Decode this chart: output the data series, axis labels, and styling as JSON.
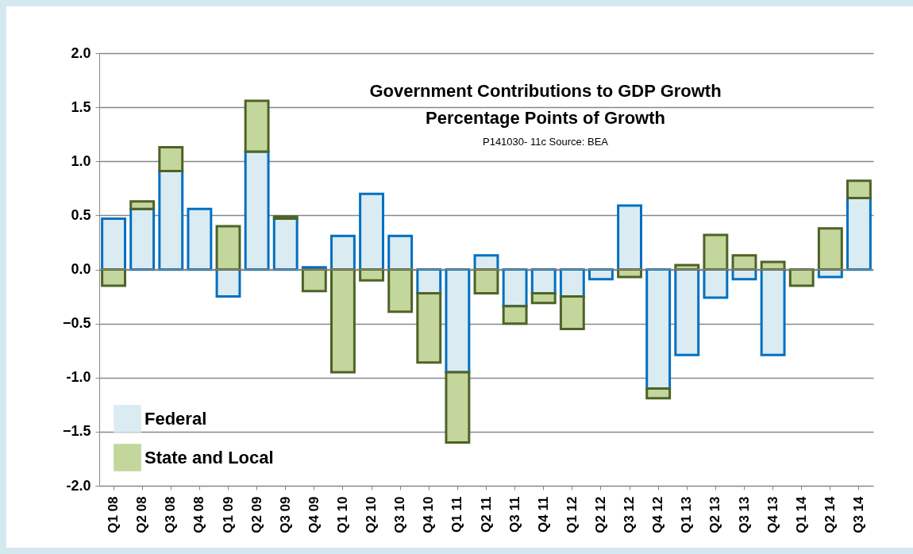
{
  "chart_data": {
    "type": "bar",
    "stacked": true,
    "title": "Government Contributions to GDP Growth",
    "subtitle": "Percentage Points of Growth",
    "annotations": [
      "P141030- 11c Source: BEA"
    ],
    "categories": [
      "Q1 08",
      "Q2 08",
      "Q3 08",
      "Q4 08",
      "Q1 09",
      "Q2 09",
      "Q3 09",
      "Q4 09",
      "Q1 10",
      "Q2 10",
      "Q3 10",
      "Q4 10",
      "Q1 11",
      "Q2 11",
      "Q3 11",
      "Q4 11",
      "Q1 12",
      "Q2 12",
      "Q3 12",
      "Q4 12",
      "Q1 13",
      "Q2 13",
      "Q3 13",
      "Q4 13",
      "Q1 14",
      "Q2 14",
      "Q3 14"
    ],
    "series": [
      {
        "name": "Federal",
        "color": "#daebf2",
        "values": [
          0.47,
          0.56,
          0.91,
          0.56,
          -0.25,
          1.09,
          0.47,
          0.02,
          0.31,
          0.7,
          0.31,
          -0.22,
          -0.95,
          0.13,
          -0.34,
          -0.22,
          -0.25,
          -0.09,
          0.59,
          -1.1,
          -0.79,
          -0.26,
          -0.09,
          -0.79,
          null,
          -0.07,
          0.66
        ]
      },
      {
        "name": "State and Local",
        "color": "#c3d69b",
        "values": [
          -0.15,
          0.07,
          0.22,
          null,
          0.4,
          0.47,
          0.02,
          -0.2,
          -0.95,
          -0.1,
          -0.39,
          -0.64,
          -0.65,
          -0.22,
          -0.16,
          -0.09,
          -0.3,
          null,
          -0.07,
          -0.09,
          0.04,
          0.32,
          0.13,
          0.07,
          -0.15,
          0.38,
          0.16
        ]
      }
    ],
    "ylim": [
      -2,
      2
    ],
    "yticks": [
      {
        "value": -2,
        "label": "-2.0"
      },
      -1.5,
      {
        "value": -1,
        "label": "-1.0"
      },
      -0.5,
      {
        "value": 0,
        "label": "0.0"
      },
      0.5,
      {
        "value": 1,
        "label": "1.0"
      },
      1.5,
      {
        "value": 2,
        "label": "2.0"
      }
    ],
    "grid": "y",
    "legend": "bottom left"
  }
}
